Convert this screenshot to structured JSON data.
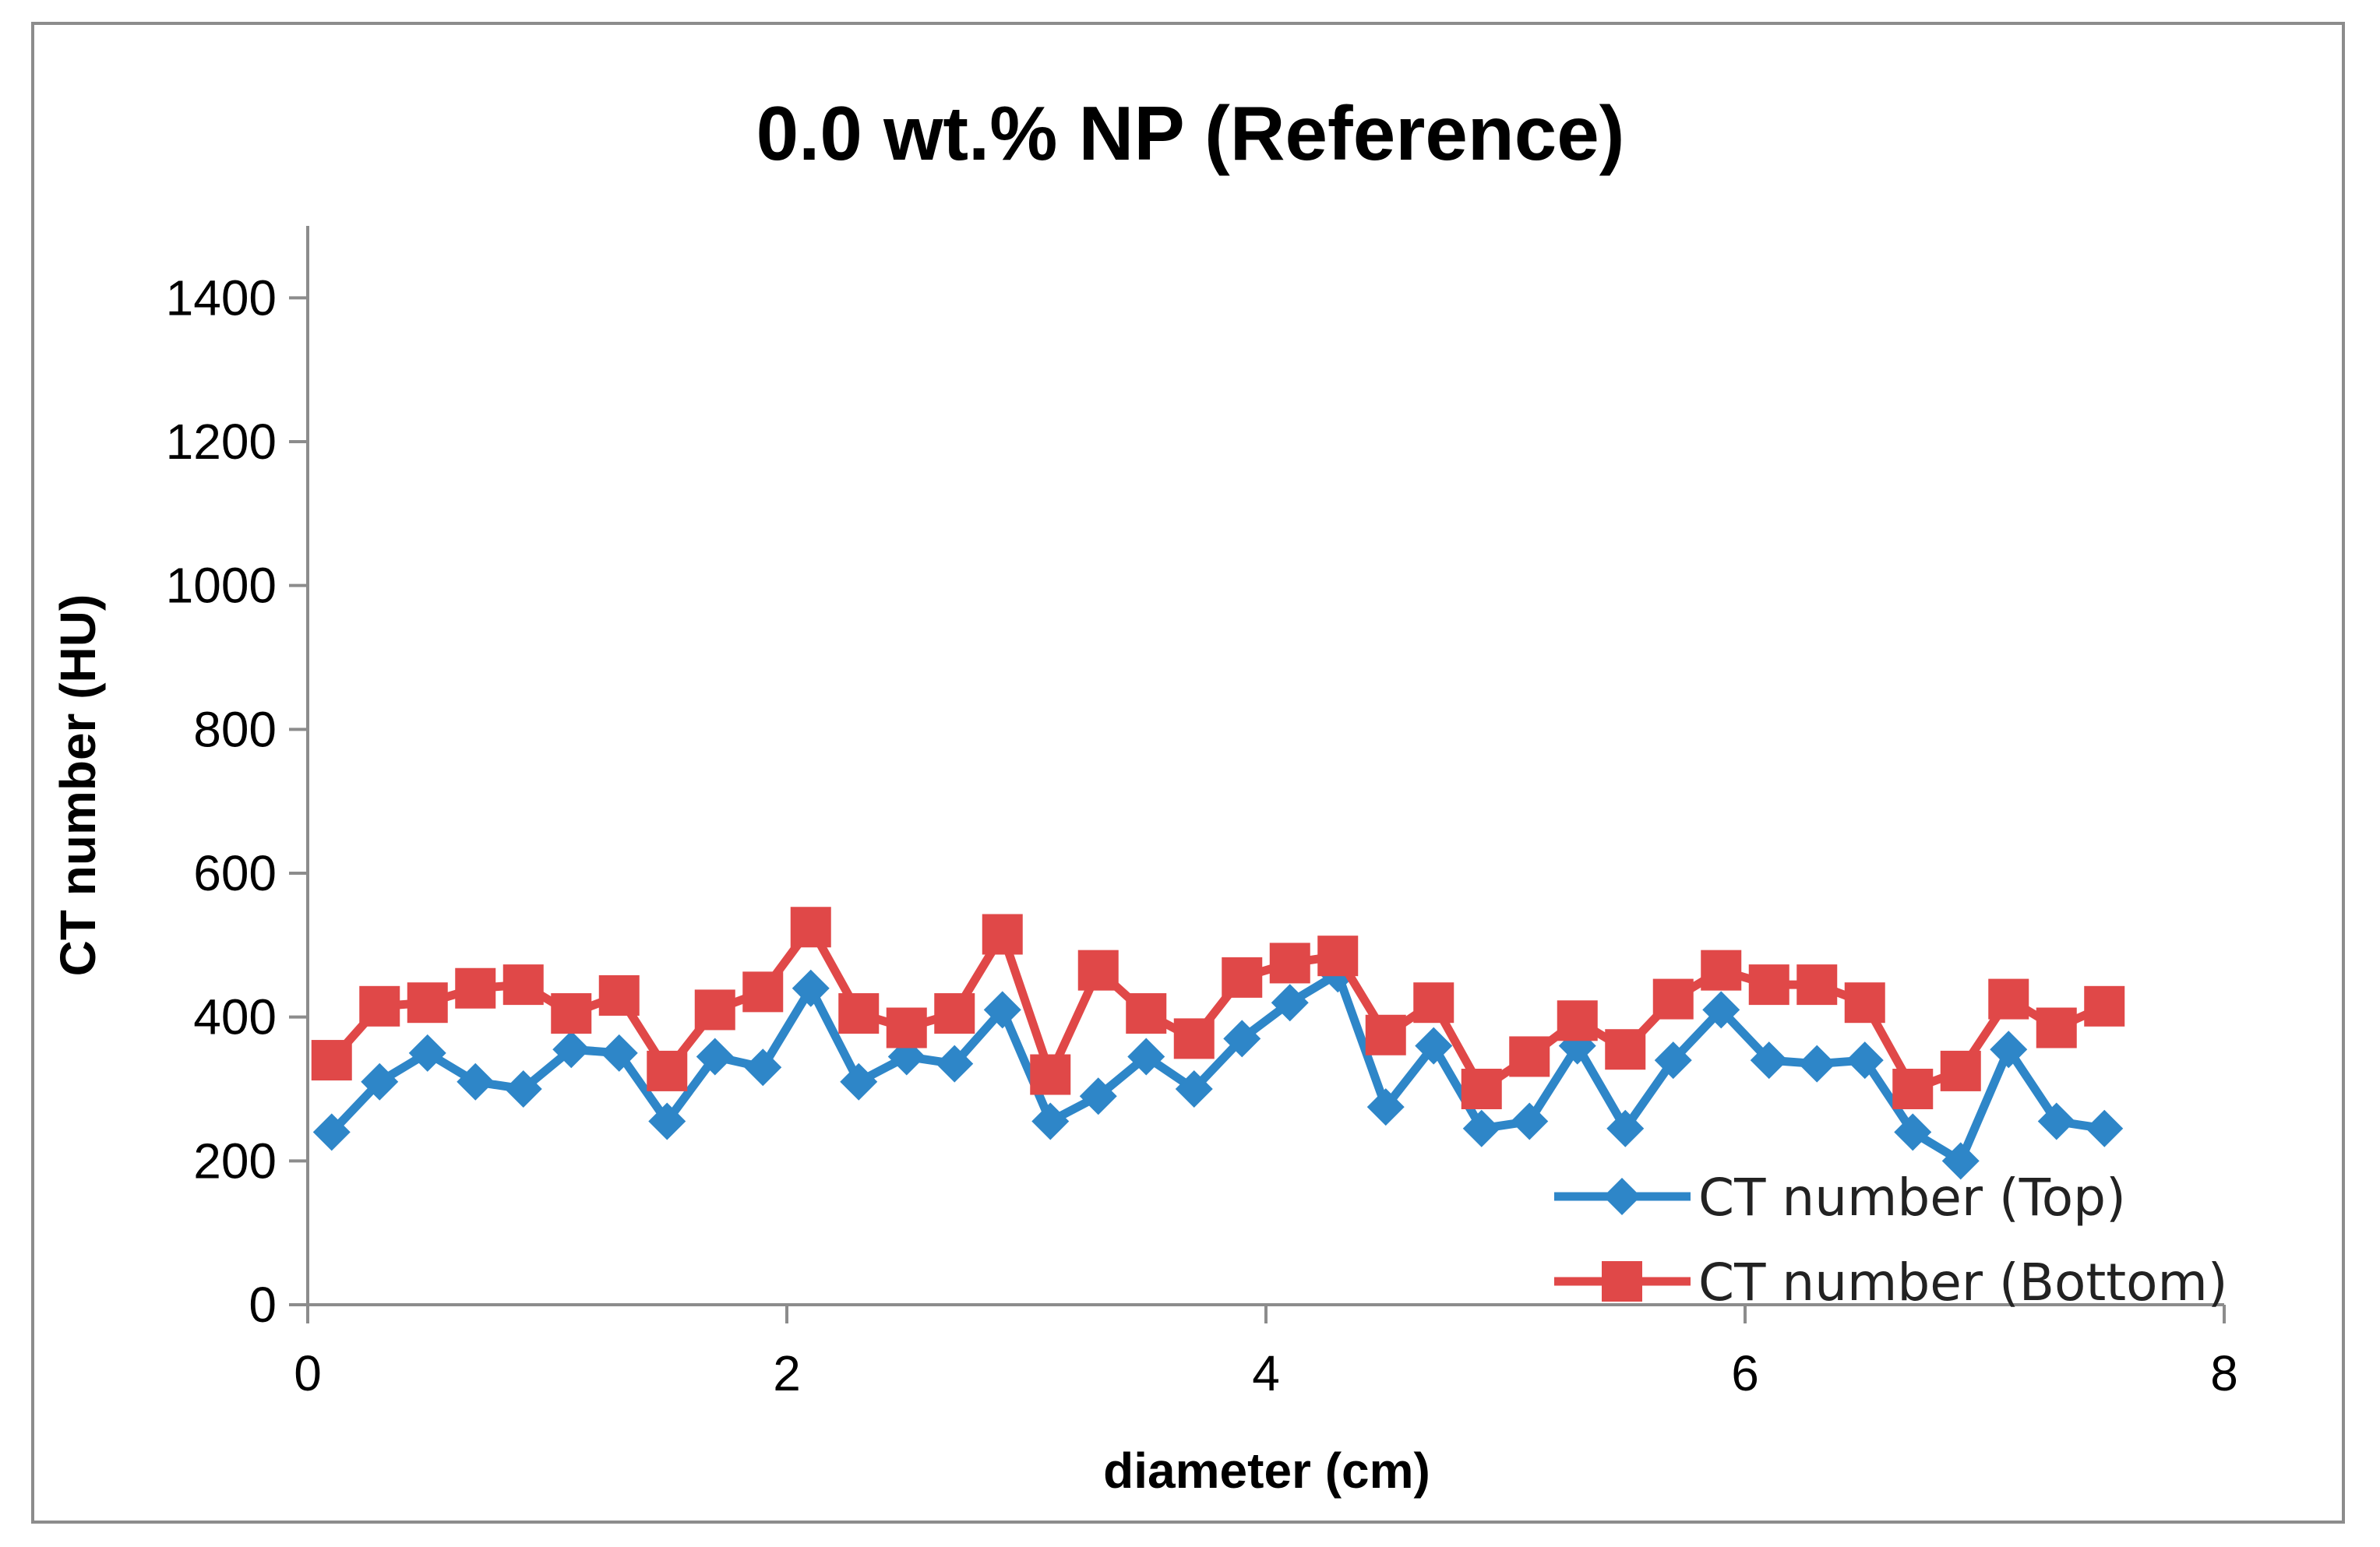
{
  "chart_data": {
    "type": "line",
    "title": "0.0 wt.% NP (Reference)",
    "xlabel": "diameter (cm)",
    "ylabel": "CT number (HU)",
    "xlim": [
      0,
      8
    ],
    "ylim": [
      0,
      1500
    ],
    "xticks": [
      0,
      2,
      4,
      6,
      8
    ],
    "yticks": [
      0,
      200,
      400,
      600,
      800,
      1000,
      1200,
      1400
    ],
    "grid": false,
    "legend_position": "bottom-right",
    "x": [
      0.1,
      0.3,
      0.5,
      0.7,
      0.9,
      1.1,
      1.3,
      1.5,
      1.7,
      1.9,
      2.1,
      2.3,
      2.5,
      2.7,
      2.9,
      3.1,
      3.3,
      3.5,
      3.7,
      3.9,
      4.1,
      4.3,
      4.5,
      4.7,
      4.9,
      5.1,
      5.3,
      5.5,
      5.7,
      5.9,
      6.1,
      6.3,
      6.5,
      6.7,
      6.9,
      7.1,
      7.3,
      7.5
    ],
    "series": [
      {
        "name": "CT number (Top)",
        "color": "#2e86c8",
        "marker": "diamond",
        "values": [
          240,
          310,
          350,
          310,
          300,
          355,
          350,
          255,
          345,
          330,
          440,
          310,
          345,
          335,
          410,
          255,
          290,
          345,
          300,
          370,
          420,
          460,
          275,
          360,
          245,
          255,
          360,
          245,
          340,
          410,
          340,
          335,
          340,
          240,
          200,
          355,
          255,
          245
        ]
      },
      {
        "name": "CT number (Bottom)",
        "color": "#e04848",
        "marker": "square",
        "values": [
          340,
          415,
          420,
          440,
          445,
          405,
          430,
          325,
          410,
          435,
          525,
          405,
          385,
          405,
          515,
          320,
          465,
          405,
          370,
          455,
          475,
          485,
          375,
          420,
          300,
          345,
          395,
          355,
          425,
          465,
          445,
          445,
          420,
          300,
          325,
          425,
          385,
          415
        ]
      }
    ]
  }
}
